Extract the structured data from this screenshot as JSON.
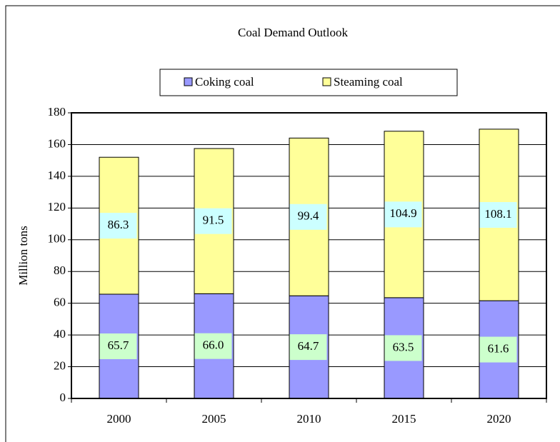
{
  "chart_data": {
    "type": "stacked_bar",
    "title": "Coal Demand Outlook",
    "y_label": "Million tons",
    "categories": [
      "2000",
      "2005",
      "2010",
      "2015",
      "2020"
    ],
    "series": [
      {
        "name": "Coking coal",
        "color": "#9999ff",
        "label_bg": "#ccffcc",
        "values": [
          65.7,
          66.0,
          64.7,
          63.5,
          61.6
        ],
        "value_labels": [
          "65.7",
          "66.0",
          "64.7",
          "63.5",
          "61.6"
        ]
      },
      {
        "name": "Steaming coal",
        "color": "#ffff99",
        "label_bg": "#ccffff",
        "values": [
          86.3,
          91.5,
          99.4,
          104.9,
          108.1
        ],
        "value_labels": [
          "86.3",
          "91.5",
          "99.4",
          "104.9",
          "108.1"
        ]
      }
    ],
    "ylim": [
      0,
      180
    ],
    "yticks": [
      0,
      20,
      40,
      60,
      80,
      100,
      120,
      140,
      160,
      180
    ],
    "grid": true,
    "legend": "top"
  }
}
